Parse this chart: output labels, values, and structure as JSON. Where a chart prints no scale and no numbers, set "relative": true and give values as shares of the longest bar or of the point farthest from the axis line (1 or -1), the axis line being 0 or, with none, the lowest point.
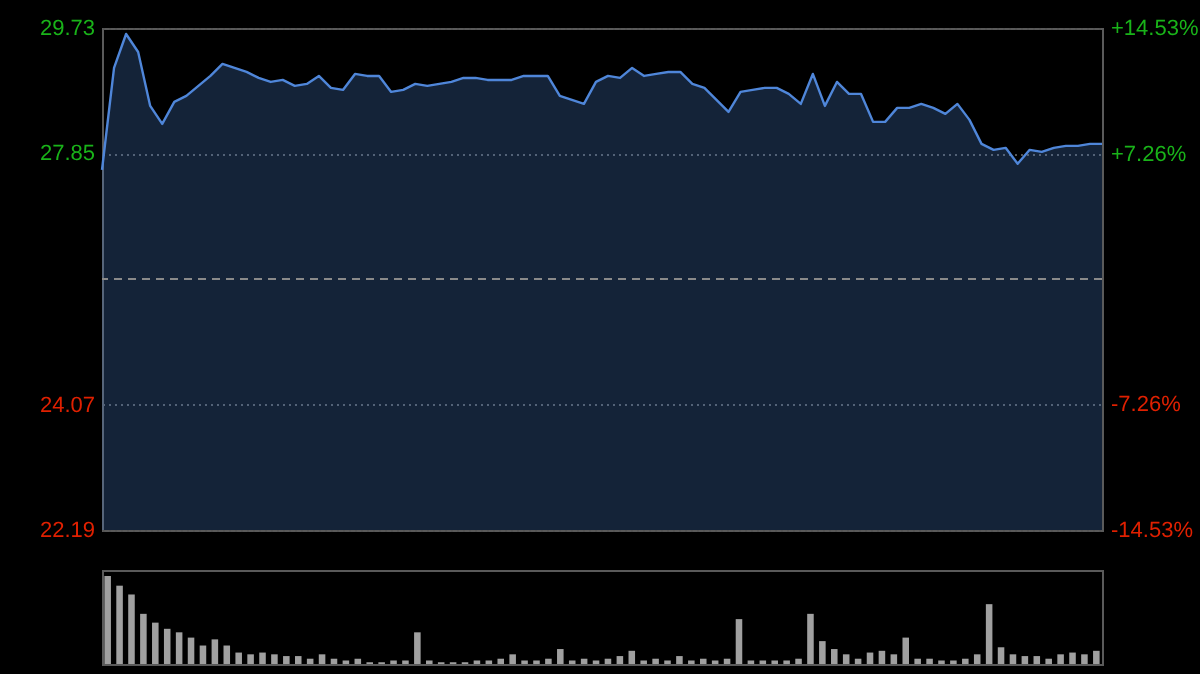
{
  "chart_data": [
    {
      "type": "area",
      "categories": [
        null,
        null,
        null,
        null,
        null,
        null,
        null,
        null,
        null,
        null,
        null,
        null,
        null,
        null,
        null,
        null,
        null,
        null,
        null,
        null,
        null,
        null,
        null,
        null,
        null,
        null,
        null,
        null,
        null,
        null,
        null,
        null,
        null,
        null,
        null,
        null,
        null,
        null,
        null,
        null,
        null,
        null,
        null,
        null,
        null,
        null,
        null,
        null,
        null,
        null,
        null,
        null,
        null,
        null,
        null,
        null,
        null,
        null,
        null,
        null,
        null,
        null,
        null,
        null,
        null,
        null,
        null,
        null,
        null,
        null,
        null,
        null,
        null,
        null,
        null,
        null,
        null,
        null,
        null,
        null,
        null,
        null,
        null,
        null
      ],
      "series": [
        {
          "color": "#4f86d9",
          "values": [
            27.6,
            29.13,
            29.64,
            29.37,
            28.56,
            28.29,
            28.62,
            28.71,
            28.86,
            29.01,
            29.19,
            29.13,
            29.07,
            28.98,
            28.92,
            28.95,
            28.86,
            28.89,
            29.01,
            28.83,
            28.8,
            29.04,
            29.01,
            29.01,
            28.77,
            28.8,
            28.89,
            28.86,
            28.89,
            28.92,
            28.98,
            28.98,
            28.95,
            28.95,
            28.95,
            29.01,
            29.01,
            29.01,
            28.71,
            28.65,
            28.59,
            28.92,
            29.01,
            28.98,
            29.13,
            29.01,
            29.04,
            29.07,
            29.07,
            28.89,
            28.83,
            28.65,
            28.47,
            28.77,
            28.8,
            28.83,
            28.83,
            28.74,
            28.59,
            29.04,
            28.56,
            28.92,
            28.74,
            28.74,
            28.32,
            28.32,
            28.53,
            28.53,
            28.59,
            28.53,
            28.44,
            28.59,
            28.35,
            27.99,
            27.9,
            27.93,
            27.69,
            27.9,
            27.87,
            27.93,
            27.96,
            27.96,
            27.99,
            27.99
          ]
        }
      ],
      "ylim": [
        22.19,
        29.73
      ],
      "yticks": [
        29.73,
        27.85,
        24.07,
        22.19
      ],
      "y2lim": [
        -14.53,
        14.53
      ],
      "y2ticks": [
        {
          "value": 14.53,
          "label": "+14.53%"
        },
        {
          "value": 7.26,
          "label": "+7.26%"
        },
        {
          "value": -7.26,
          "label": "-7.26%"
        },
        {
          "value": -14.53,
          "label": "-14.53%"
        }
      ],
      "ref_lines": [
        {
          "axis": "y2",
          "value": 0,
          "color": "#8a8a8a",
          "line_style": "dashed"
        }
      ],
      "grid": "y",
      "tick_labels": "y"
    },
    {
      "type": "bar",
      "relative": true,
      "categories": [
        null,
        null,
        null,
        null,
        null,
        null,
        null,
        null,
        null,
        null,
        null,
        null,
        null,
        null,
        null,
        null,
        null,
        null,
        null,
        null,
        null,
        null,
        null,
        null,
        null,
        null,
        null,
        null,
        null,
        null,
        null,
        null,
        null,
        null,
        null,
        null,
        null,
        null,
        null,
        null,
        null,
        null,
        null,
        null,
        null,
        null,
        null,
        null,
        null,
        null,
        null,
        null,
        null,
        null,
        null,
        null,
        null,
        null,
        null,
        null,
        null,
        null,
        null,
        null,
        null,
        null,
        null,
        null,
        null,
        null,
        null,
        null,
        null,
        null,
        null,
        null,
        null,
        null,
        null,
        null,
        null,
        null,
        null,
        null
      ],
      "series": [
        {
          "color": "#a0a0a0",
          "values": [
            1.0,
            0.89,
            0.79,
            0.57,
            0.47,
            0.4,
            0.36,
            0.3,
            0.21,
            0.28,
            0.21,
            0.13,
            0.11,
            0.13,
            0.11,
            0.09,
            0.09,
            0.06,
            0.11,
            0.06,
            0.04,
            0.06,
            0.02,
            0.02,
            0.04,
            0.04,
            0.36,
            0.04,
            0.02,
            0.02,
            0.02,
            0.04,
            0.04,
            0.06,
            0.11,
            0.04,
            0.04,
            0.06,
            0.17,
            0.04,
            0.06,
            0.04,
            0.06,
            0.09,
            0.15,
            0.04,
            0.06,
            0.04,
            0.09,
            0.04,
            0.06,
            0.04,
            0.06,
            0.51,
            0.04,
            0.04,
            0.04,
            0.04,
            0.06,
            0.57,
            0.26,
            0.17,
            0.11,
            0.06,
            0.13,
            0.15,
            0.11,
            0.3,
            0.06,
            0.06,
            0.04,
            0.04,
            0.06,
            0.11,
            0.68,
            0.19,
            0.11,
            0.09,
            0.09,
            0.06,
            0.11,
            0.13,
            0.11,
            0.15
          ]
        }
      ],
      "tick_labels": false
    }
  ]
}
